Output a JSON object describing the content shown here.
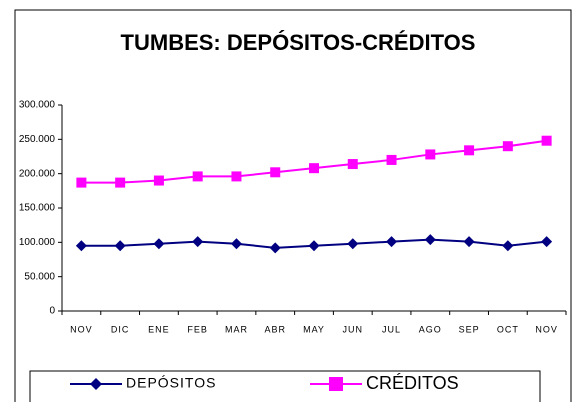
{
  "chart_data": {
    "type": "line",
    "title": "TUMBES: DEPÓSITOS-CRÉDITOS",
    "categories": [
      "NOV",
      "DIC",
      "ENE",
      "FEB",
      "MAR",
      "ABR",
      "MAY",
      "JUN",
      "JUL",
      "AGO",
      "SEP",
      "OCT",
      "NOV"
    ],
    "series": [
      {
        "name": "DEPÓSITOS",
        "color": "#000080",
        "marker": "diamond",
        "values": [
          95000,
          95000,
          98000,
          101000,
          98000,
          92000,
          95000,
          98000,
          101000,
          104000,
          101000,
          95000,
          101000
        ]
      },
      {
        "name": "CRÉDITOS",
        "color": "#ff00ff",
        "marker": "square",
        "values": [
          187000,
          187000,
          190000,
          196000,
          196000,
          202000,
          208000,
          214000,
          220000,
          228000,
          234000,
          240000,
          248000
        ]
      }
    ],
    "ylim": [
      0,
      300000
    ],
    "yticks": [
      0,
      {
        "value": 50000,
        "label": "50.000"
      },
      {
        "value": 100000,
        "label": "100.000"
      },
      {
        "value": 150000,
        "label": "150.000"
      },
      {
        "value": 200000,
        "label": "200.000"
      },
      {
        "value": 250000,
        "label": "250.000"
      },
      {
        "value": 300000,
        "label": "300.000"
      }
    ],
    "grid": false,
    "legend": "bottom"
  }
}
